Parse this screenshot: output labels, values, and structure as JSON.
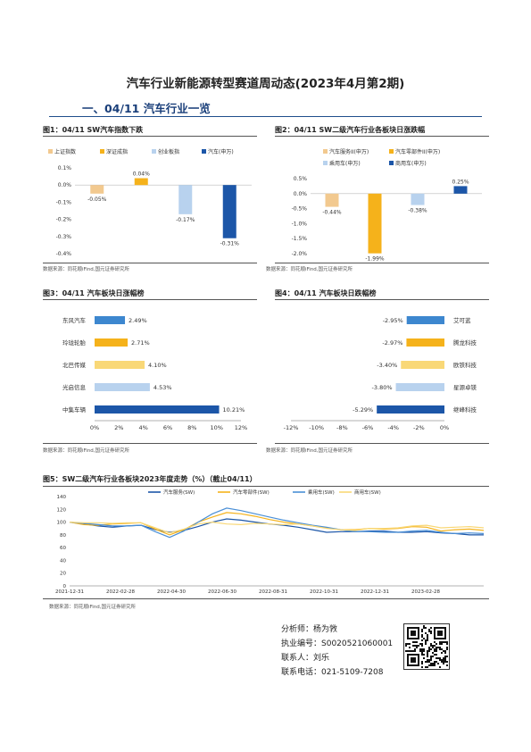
{
  "title": "汽车行业新能源转型赛道周动态(2023年4月第2期)",
  "section_heading": "一、04/11 汽车行业一览",
  "source_note": "数据来源：同花顺iFind,国元证券研究所",
  "figures": [
    {
      "title": "图1：04/11 SW汽车指数下跌"
    },
    {
      "title": "图2：04/11 SW二级汽车行业各板块日涨跌幅"
    },
    {
      "title": "图3：04/11 汽车板块日涨幅榜"
    },
    {
      "title": "图4：04/11 汽车板块日跌幅榜"
    },
    {
      "title": "图5：SW二级汽车行业各板块2023年度走势（%）（截止04/11）"
    }
  ],
  "chart_data": [
    {
      "type": "bar",
      "categories": [
        "上证指数",
        "深证成指",
        "创业板指",
        "汽车(申万)"
      ],
      "values": [
        -0.05,
        0.04,
        -0.17,
        -0.31
      ],
      "data_labels": [
        "-0.05%",
        "0.04%",
        "-0.17%",
        "-0.31%"
      ],
      "colors": [
        "#f2c98f",
        "#f5b21b",
        "#b8d2ee",
        "#1c56a8"
      ],
      "ylim": [
        -0.4,
        0.1
      ],
      "yticks": [
        "0.1%",
        "0.0%",
        "-0.1%",
        "-0.2%",
        "-0.3%",
        "-0.4%"
      ],
      "legend": "top"
    },
    {
      "type": "bar",
      "categories": [
        "汽车服务II(申万)",
        "汽车零部件II(申万)",
        "乘用车(申万)",
        "商用车(申万)"
      ],
      "values": [
        -0.44,
        -1.99,
        -0.38,
        0.25
      ],
      "data_labels": [
        "-0.44%",
        "-1.99%",
        "-0.38%",
        "0.25%"
      ],
      "colors": [
        "#f2c98f",
        "#f5b21b",
        "#b8d2ee",
        "#1c56a8"
      ],
      "ylim": [
        -2.0,
        0.5
      ],
      "yticks": [
        "0.5%",
        "0.0%",
        "-0.5%",
        "-1.0%",
        "-1.5%",
        "-2.0%"
      ],
      "legend": "top"
    },
    {
      "type": "bar",
      "orientation": "horizontal",
      "categories": [
        "东风汽车",
        "玲珑轮胎",
        "北巴传媒",
        "光启信息",
        "中集车辆"
      ],
      "values": [
        2.49,
        2.71,
        4.1,
        4.53,
        10.21
      ],
      "data_labels": [
        "2.49%",
        "2.71%",
        "4.10%",
        "4.53%",
        "10.21%"
      ],
      "colors": [
        "#3d87cf",
        "#f5b21b",
        "#f9d877",
        "#b8d2ee",
        "#1c56a8"
      ],
      "xlim": [
        0,
        12
      ],
      "xticks": [
        "0%",
        "2%",
        "4%",
        "6%",
        "8%",
        "10%",
        "12%"
      ]
    },
    {
      "type": "bar",
      "orientation": "horizontal",
      "categories": [
        "艾可蓝",
        "腾龙科技",
        "欧铁科技",
        "星源卓镁",
        "继峰科技"
      ],
      "values": [
        -2.95,
        -2.97,
        -3.4,
        -3.8,
        -5.29
      ],
      "data_labels": [
        "-2.95%",
        "-2.97%",
        "-3.40%",
        "-3.80%",
        "-5.29%"
      ],
      "colors": [
        "#3d87cf",
        "#f5b21b",
        "#f9d877",
        "#b8d2ee",
        "#1c56a8"
      ],
      "xlim": [
        -12,
        0
      ],
      "xticks": [
        "-12%",
        "-10%",
        "-8%",
        "-6%",
        "-4%",
        "-2%",
        "0%"
      ]
    },
    {
      "type": "line",
      "series": [
        {
          "name": "汽车服务(SW)",
          "color": "#1c56a8",
          "values": [
            100,
            97,
            94,
            92,
            94,
            95,
            88,
            84,
            87,
            93,
            100,
            105,
            103,
            100,
            97,
            95,
            92,
            88,
            84,
            85,
            85,
            86,
            86,
            84,
            84,
            85,
            83,
            82,
            80,
            80
          ]
        },
        {
          "name": "汽车零部件(SW)",
          "color": "#f5b21b",
          "values": [
            100,
            96,
            95,
            97,
            98,
            99,
            89,
            80,
            88,
            100,
            108,
            115,
            113,
            109,
            104,
            100,
            97,
            94,
            91,
            88,
            88,
            90,
            89,
            90,
            93,
            92,
            86,
            88,
            89,
            87
          ]
        },
        {
          "name": "乘用车(SW)",
          "color": "#4a8fd6",
          "values": [
            100,
            98,
            96,
            94,
            94,
            95,
            85,
            76,
            86,
            100,
            113,
            122,
            118,
            113,
            108,
            103,
            99,
            95,
            92,
            88,
            85,
            85,
            84,
            84,
            86,
            87,
            84,
            82,
            83,
            82
          ]
        },
        {
          "name": "商用车(SW)",
          "color": "#f9d877",
          "values": [
            100,
            99,
            99,
            98,
            99,
            99,
            91,
            83,
            89,
            97,
            100,
            97,
            96,
            98,
            97,
            96,
            97,
            94,
            90,
            88,
            87,
            90,
            90,
            91,
            94,
            95,
            91,
            92,
            93,
            91
          ]
        }
      ],
      "x_labels": [
        "2021-12-31",
        "2022-02-28",
        "2022-04-30",
        "2022-06-30",
        "2022-08-31",
        "2022-10-31",
        "2022-12-31",
        "2023-02-28"
      ],
      "ylim": [
        0,
        140
      ],
      "yticks": [
        "0",
        "20",
        "40",
        "60",
        "80",
        "100",
        "120",
        "140"
      ],
      "legend": "top"
    }
  ],
  "contact": {
    "analyst": "分析师：杨为敩",
    "cert": "执业编号：S0020521060001",
    "person": "联系人：刘乐",
    "phone": "联系电话：021-5109-7208"
  }
}
